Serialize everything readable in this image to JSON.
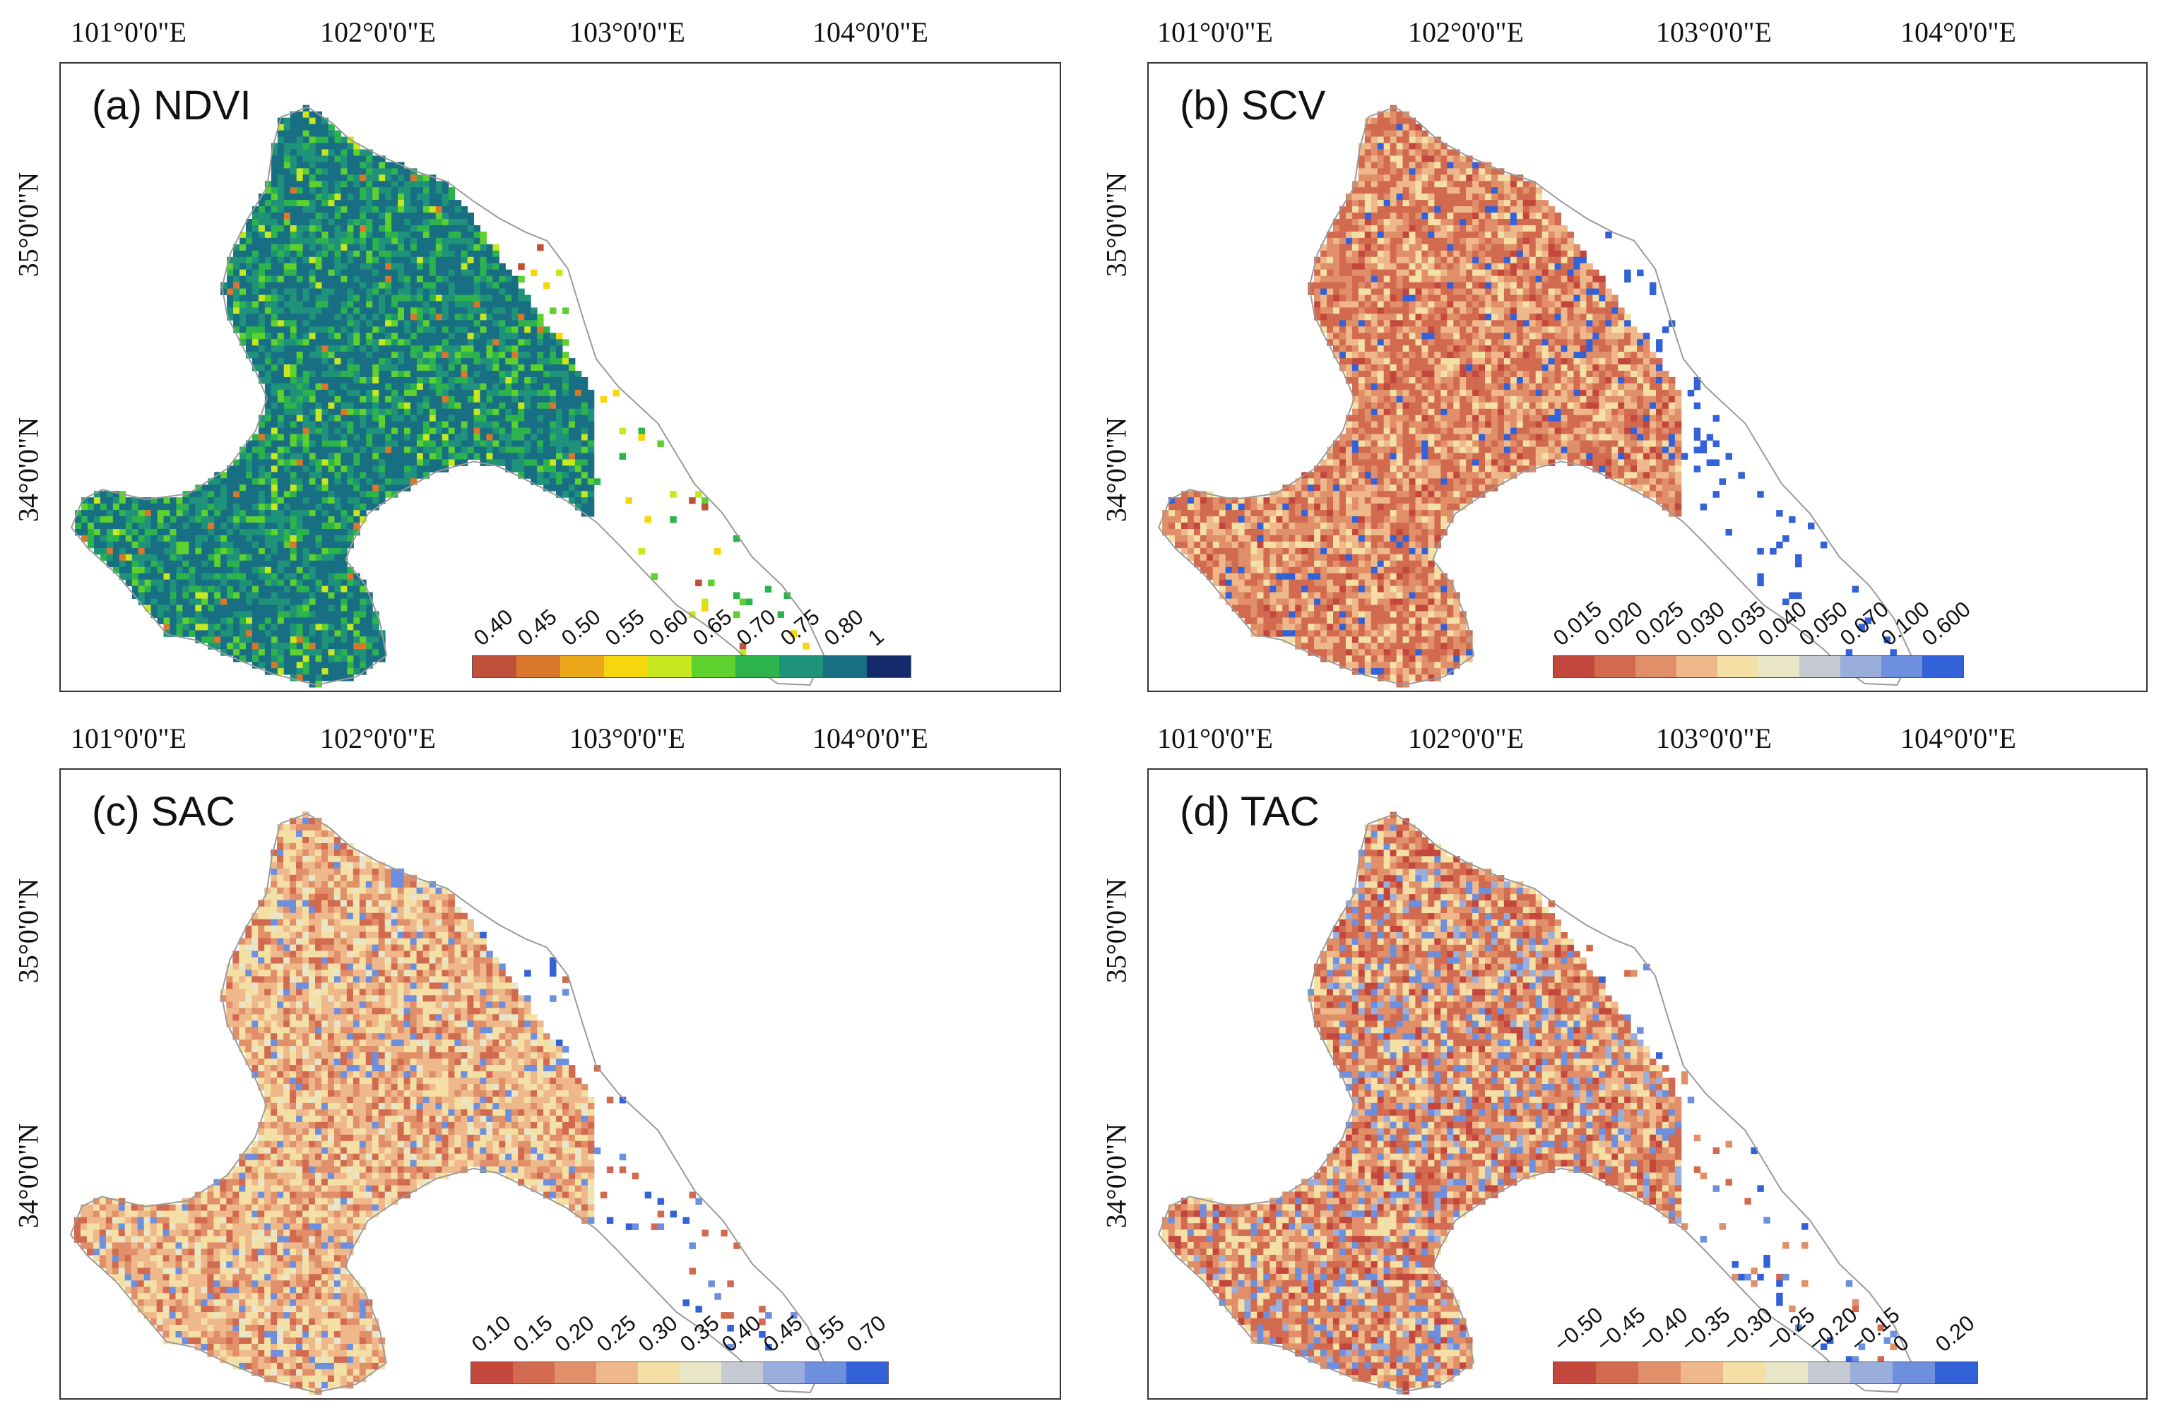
{
  "figure_title": "",
  "x_ticks": [
    "101°0'0\"E",
    "102°0'0\"E",
    "103°0'0\"E",
    "104°0'0\"E"
  ],
  "y_ticks": [
    "35°0'0\"N",
    "34°0'0\"N"
  ],
  "panels": [
    {
      "title": "(a) NDVI",
      "palette": [
        "#c0503a",
        "#d9772a",
        "#eaa71a",
        "#f6d60f",
        "#c5e81e",
        "#5ed12f",
        "#2db34c",
        "#1f937a",
        "#186e83",
        "#152a6b"
      ],
      "legend": {
        "labels": [
          "0.40",
          "0.45",
          "0.50",
          "0.55",
          "0.60",
          "0.65",
          "0.70",
          "0.75",
          "0.80",
          "1"
        ],
        "colors": [
          "#c0503a",
          "#d9772a",
          "#eaa71a",
          "#f6d60f",
          "#c5e81e",
          "#5ed12f",
          "#2db34c",
          "#1f937a",
          "#186e83",
          "#152a6b"
        ]
      }
    },
    {
      "title": "(b) SCV",
      "palette": [
        "#c4473d",
        "#d26a4f",
        "#e08f68",
        "#efb88a",
        "#f4dfa4",
        "#e8e6c6",
        "#c5c9d1",
        "#9aaedb",
        "#6d8fdd",
        "#3261d8"
      ],
      "legend": {
        "labels": [
          "0.015",
          "0.020",
          "0.025",
          "0.030",
          "0.035",
          "0.040",
          "0.050",
          "0.070",
          "0.100",
          "0.600"
        ],
        "colors": [
          "#c4473d",
          "#d26a4f",
          "#e08f68",
          "#efb88a",
          "#f4dfa4",
          "#e8e6c6",
          "#c5c9d1",
          "#9aaedb",
          "#6d8fdd",
          "#3261d8"
        ]
      }
    },
    {
      "title": "(c) SAC",
      "palette": [
        "#c4473d",
        "#d26a4f",
        "#e08f68",
        "#efb88a",
        "#f4dfa4",
        "#e8e6c6",
        "#c5c9d1",
        "#9aaedb",
        "#6d8fdd",
        "#3261d8"
      ],
      "legend": {
        "labels": [
          "0.10",
          "0.15",
          "0.20",
          "0.25",
          "0.30",
          "0.35",
          "0.40",
          "0.45",
          "0.55",
          "0.70"
        ],
        "colors": [
          "#c4473d",
          "#d26a4f",
          "#e08f68",
          "#efb88a",
          "#f4dfa4",
          "#e8e6c6",
          "#c5c9d1",
          "#9aaedb",
          "#6d8fdd",
          "#3261d8"
        ]
      }
    },
    {
      "title": "(d) TAC",
      "palette": [
        "#c4473d",
        "#d26a4f",
        "#e08f68",
        "#efb88a",
        "#f4dfa4",
        "#e8e6c6",
        "#c5c9d1",
        "#9aaedb",
        "#6d8fdd",
        "#3261d8"
      ],
      "legend": {
        "labels": [
          "−0.50",
          "−0.45",
          "−0.40",
          "−0.35",
          "−0.30",
          "−0.25",
          "−0.20",
          "−0.15",
          "0",
          "0.20"
        ],
        "colors": [
          "#c4473d",
          "#d26a4f",
          "#e08f68",
          "#efb88a",
          "#f4dfa4",
          "#e8e6c6",
          "#c5c9d1",
          "#9aaedb",
          "#6d8fdd",
          "#3261d8"
        ]
      }
    }
  ]
}
